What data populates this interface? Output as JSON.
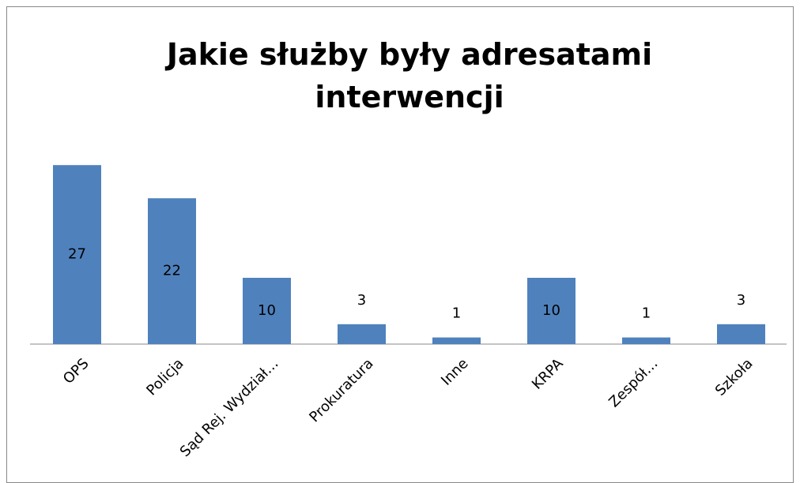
{
  "chart_data": {
    "type": "bar",
    "title": "Jakie służby były adresatami interwencji",
    "categories": [
      "OPS",
      "Policja",
      "Sąd Rej. Wydział…",
      "Prokuratura",
      "Inne",
      "KRPA",
      "Zespół…",
      "Szkoła"
    ],
    "values": [
      27,
      22,
      10,
      3,
      1,
      10,
      1,
      3
    ],
    "color": "#4f81bd"
  }
}
